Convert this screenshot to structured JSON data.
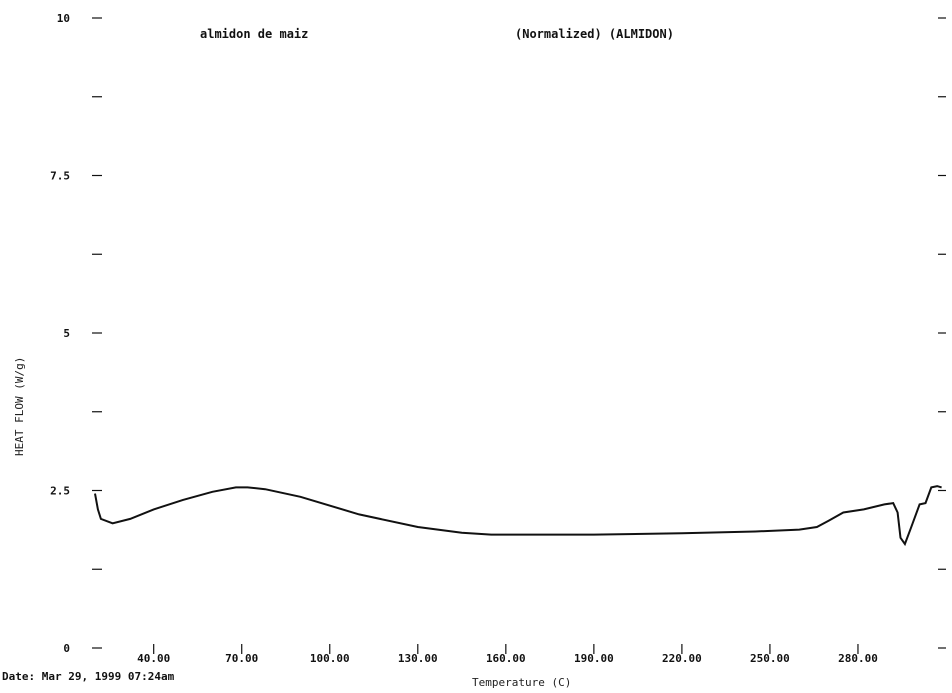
{
  "header": {
    "sample": "almidon de maiz",
    "mode": "(Normalized) (ALMIDON)"
  },
  "footer": {
    "date": "Date: Mar 29, 1999 07:24am"
  },
  "chart_data": {
    "type": "line",
    "xlabel": "Temperature (C)",
    "ylabel": "HEAT FLOW   (W/g)",
    "xlim": [
      20,
      310
    ],
    "ylim": [
      0,
      10
    ],
    "x_ticks": [
      40,
      70,
      100,
      130,
      160,
      190,
      220,
      250,
      280
    ],
    "x_tick_labels": [
      "40.00",
      "70.00",
      "100.00",
      "130.00",
      "160.00",
      "190.00",
      "220.00",
      "250.00",
      "280.00"
    ],
    "y_ticks": [
      0,
      2.5,
      5,
      7.5,
      10
    ],
    "y_tick_labels": [
      "0",
      "2.5",
      "5",
      "7.5",
      "10"
    ],
    "grid": false,
    "series": [
      {
        "x": [
          20,
          21,
          22,
          26,
          32,
          40,
          50,
          60,
          68,
          72,
          78,
          90,
          110,
          130,
          145,
          155,
          170,
          190,
          220,
          245,
          260,
          266,
          270,
          275,
          282,
          289,
          292,
          293.5,
          294.5,
          296,
          298,
          301,
          303,
          305,
          307,
          308.5
        ],
        "y": [
          2.45,
          2.2,
          2.05,
          1.98,
          2.05,
          2.2,
          2.35,
          2.48,
          2.55,
          2.55,
          2.52,
          2.4,
          2.12,
          1.92,
          1.83,
          1.8,
          1.8,
          1.8,
          1.82,
          1.85,
          1.88,
          1.92,
          2.02,
          2.15,
          2.2,
          2.28,
          2.3,
          2.15,
          1.75,
          1.65,
          1.9,
          2.28,
          2.3,
          2.55,
          2.57,
          2.55
        ]
      }
    ]
  }
}
